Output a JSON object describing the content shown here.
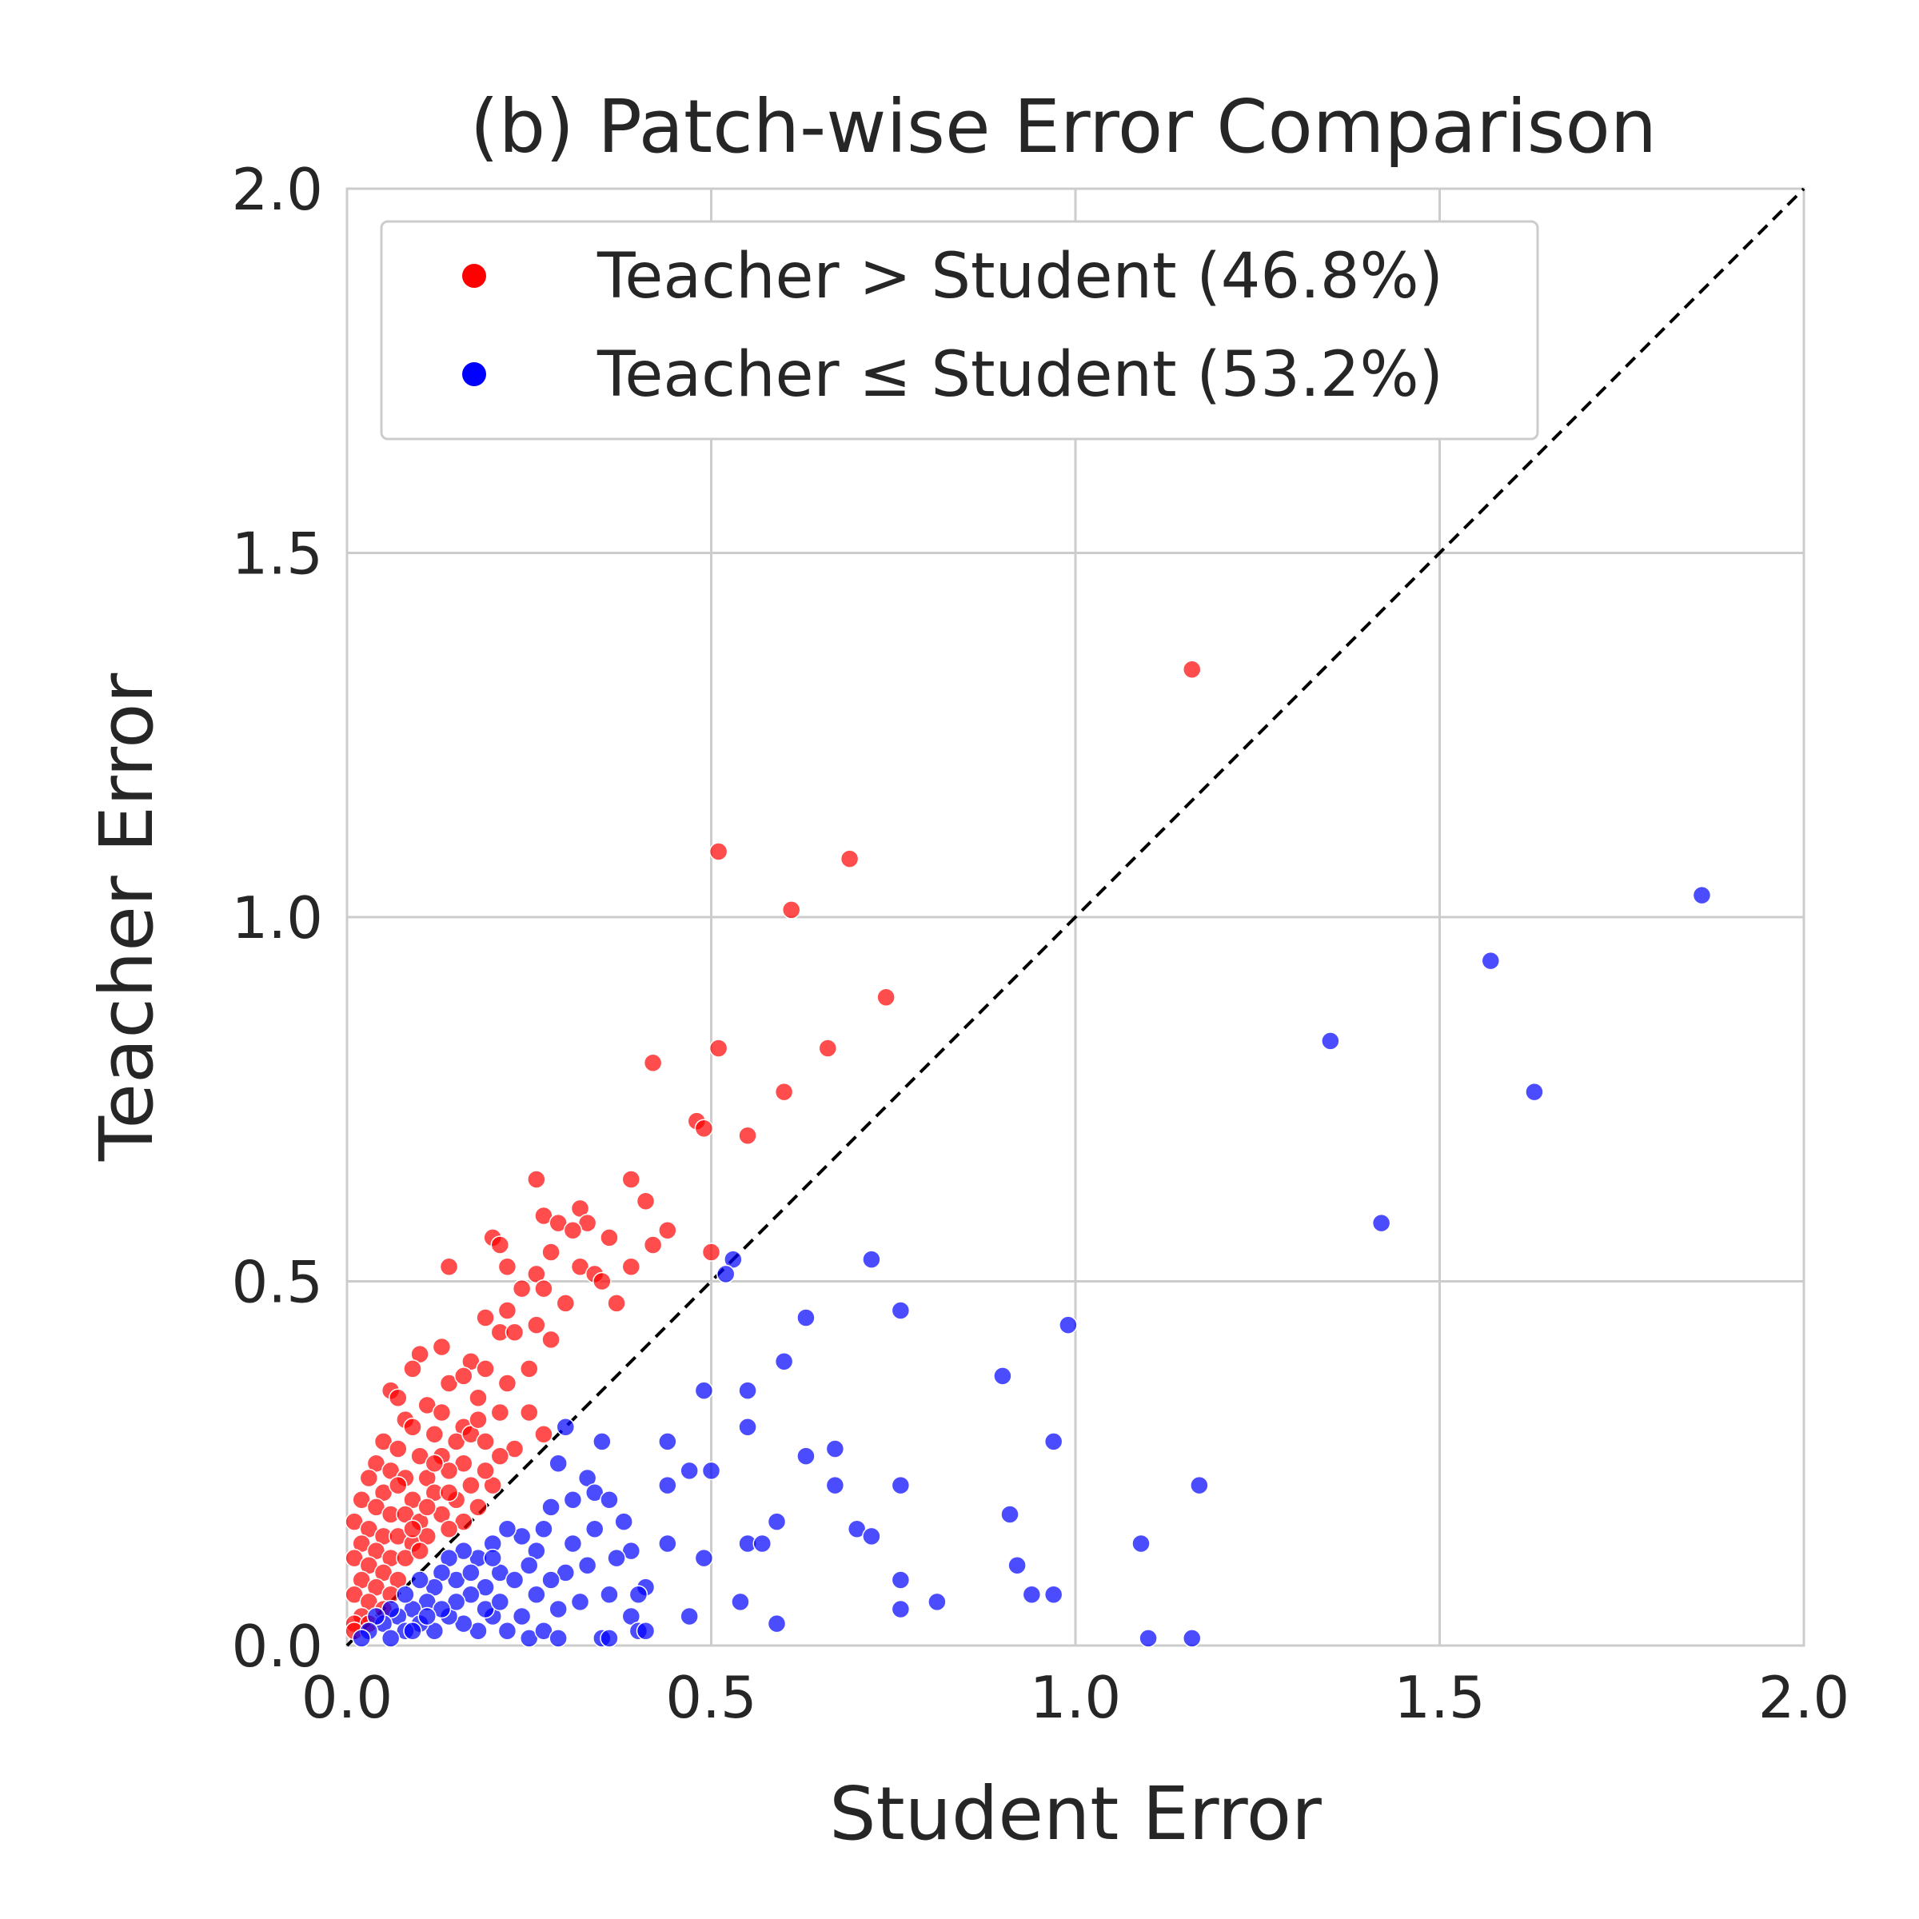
{
  "chart_data": {
    "type": "scatter",
    "title": "(b) Patch-wise Error Comparison",
    "xlabel": "Student Error",
    "ylabel": "Teacher Error",
    "xlim": [
      0.0,
      2.0
    ],
    "ylim": [
      0.0,
      2.0
    ],
    "xticks": [
      "0.0",
      "0.5",
      "1.0",
      "1.5",
      "2.0"
    ],
    "yticks": [
      "0.0",
      "0.5",
      "1.0",
      "1.5",
      "2.0"
    ],
    "grid": true,
    "legend_position": "top-left",
    "reference_line": "y = x (black dashed)",
    "series": [
      {
        "name": "Teacher > Student (46.8%)",
        "color": "#ff0000",
        "points": [
          [
            1.16,
            1.34
          ],
          [
            0.51,
            1.09
          ],
          [
            0.69,
            1.08
          ],
          [
            0.61,
            1.01
          ],
          [
            0.74,
            0.89
          ],
          [
            0.51,
            0.82
          ],
          [
            0.66,
            0.82
          ],
          [
            0.42,
            0.8
          ],
          [
            0.6,
            0.76
          ],
          [
            0.48,
            0.72
          ],
          [
            0.49,
            0.71
          ],
          [
            0.55,
            0.7
          ],
          [
            0.26,
            0.64
          ],
          [
            0.39,
            0.64
          ],
          [
            0.41,
            0.61
          ],
          [
            0.32,
            0.6
          ],
          [
            0.27,
            0.59
          ],
          [
            0.29,
            0.58
          ],
          [
            0.33,
            0.58
          ],
          [
            0.31,
            0.57
          ],
          [
            0.44,
            0.57
          ],
          [
            0.2,
            0.56
          ],
          [
            0.21,
            0.55
          ],
          [
            0.36,
            0.56
          ],
          [
            0.42,
            0.55
          ],
          [
            0.5,
            0.54
          ],
          [
            0.39,
            0.52
          ],
          [
            0.28,
            0.54
          ],
          [
            0.14,
            0.52
          ],
          [
            0.22,
            0.52
          ],
          [
            0.26,
            0.51
          ],
          [
            0.32,
            0.52
          ],
          [
            0.34,
            0.51
          ],
          [
            0.35,
            0.5
          ],
          [
            0.24,
            0.49
          ],
          [
            0.37,
            0.47
          ],
          [
            0.27,
            0.49
          ],
          [
            0.3,
            0.47
          ],
          [
            0.22,
            0.46
          ],
          [
            0.19,
            0.45
          ],
          [
            0.26,
            0.44
          ],
          [
            0.21,
            0.43
          ],
          [
            0.28,
            0.42
          ],
          [
            0.23,
            0.43
          ],
          [
            0.13,
            0.41
          ],
          [
            0.1,
            0.4
          ],
          [
            0.17,
            0.39
          ],
          [
            0.19,
            0.38
          ],
          [
            0.25,
            0.38
          ],
          [
            0.09,
            0.38
          ],
          [
            0.06,
            0.35
          ],
          [
            0.14,
            0.36
          ],
          [
            0.16,
            0.37
          ],
          [
            0.22,
            0.36
          ],
          [
            0.18,
            0.34
          ],
          [
            0.07,
            0.34
          ],
          [
            0.11,
            0.33
          ],
          [
            0.13,
            0.32
          ],
          [
            0.16,
            0.3
          ],
          [
            0.21,
            0.32
          ],
          [
            0.25,
            0.32
          ],
          [
            0.08,
            0.31
          ],
          [
            0.09,
            0.3
          ],
          [
            0.12,
            0.29
          ],
          [
            0.15,
            0.28
          ],
          [
            0.17,
            0.29
          ],
          [
            0.19,
            0.28
          ],
          [
            0.27,
            0.29
          ],
          [
            0.05,
            0.28
          ],
          [
            0.07,
            0.27
          ],
          [
            0.1,
            0.26
          ],
          [
            0.13,
            0.26
          ],
          [
            0.16,
            0.25
          ],
          [
            0.04,
            0.25
          ],
          [
            0.06,
            0.24
          ],
          [
            0.08,
            0.23
          ],
          [
            0.11,
            0.23
          ],
          [
            0.14,
            0.24
          ],
          [
            0.2,
            0.22
          ],
          [
            0.03,
            0.23
          ],
          [
            0.05,
            0.21
          ],
          [
            0.07,
            0.22
          ],
          [
            0.09,
            0.2
          ],
          [
            0.12,
            0.21
          ],
          [
            0.15,
            0.2
          ],
          [
            0.18,
            0.19
          ],
          [
            0.02,
            0.2
          ],
          [
            0.04,
            0.19
          ],
          [
            0.06,
            0.18
          ],
          [
            0.08,
            0.18
          ],
          [
            0.1,
            0.17
          ],
          [
            0.13,
            0.18
          ],
          [
            0.16,
            0.17
          ],
          [
            0.01,
            0.17
          ],
          [
            0.03,
            0.16
          ],
          [
            0.05,
            0.15
          ],
          [
            0.07,
            0.15
          ],
          [
            0.09,
            0.14
          ],
          [
            0.11,
            0.15
          ],
          [
            0.14,
            0.16
          ],
          [
            0.02,
            0.14
          ],
          [
            0.04,
            0.13
          ],
          [
            0.06,
            0.12
          ],
          [
            0.08,
            0.12
          ],
          [
            0.1,
            0.13
          ],
          [
            0.01,
            0.12
          ],
          [
            0.03,
            0.11
          ],
          [
            0.05,
            0.1
          ],
          [
            0.07,
            0.09
          ],
          [
            0.02,
            0.09
          ],
          [
            0.04,
            0.08
          ],
          [
            0.06,
            0.07
          ],
          [
            0.01,
            0.07
          ],
          [
            0.03,
            0.06
          ],
          [
            0.05,
            0.05
          ],
          [
            0.02,
            0.04
          ],
          [
            0.01,
            0.03
          ],
          [
            0.03,
            0.03
          ],
          [
            0.01,
            0.02
          ],
          [
            0.12,
            0.25
          ],
          [
            0.18,
            0.31
          ],
          [
            0.23,
            0.27
          ],
          [
            0.19,
            0.24
          ],
          [
            0.11,
            0.19
          ],
          [
            0.09,
            0.16
          ],
          [
            0.14,
            0.21
          ],
          [
            0.17,
            0.22
          ],
          [
            0.21,
            0.26
          ]
        ]
      },
      {
        "name": "Teacher ≤ Student (53.2%)",
        "color": "#0000ff",
        "points": [
          [
            1.86,
            1.03
          ],
          [
            1.57,
            0.94
          ],
          [
            1.35,
            0.83
          ],
          [
            1.63,
            0.76
          ],
          [
            1.42,
            0.58
          ],
          [
            0.53,
            0.53
          ],
          [
            0.72,
            0.53
          ],
          [
            0.52,
            0.51
          ],
          [
            0.76,
            0.46
          ],
          [
            0.63,
            0.45
          ],
          [
            0.99,
            0.44
          ],
          [
            0.6,
            0.39
          ],
          [
            0.9,
            0.37
          ],
          [
            0.49,
            0.35
          ],
          [
            0.55,
            0.35
          ],
          [
            0.3,
            0.3
          ],
          [
            0.55,
            0.3
          ],
          [
            0.44,
            0.28
          ],
          [
            0.35,
            0.28
          ],
          [
            0.97,
            0.28
          ],
          [
            0.67,
            0.27
          ],
          [
            0.63,
            0.26
          ],
          [
            0.47,
            0.24
          ],
          [
            0.5,
            0.24
          ],
          [
            0.29,
            0.25
          ],
          [
            0.33,
            0.23
          ],
          [
            0.44,
            0.22
          ],
          [
            0.67,
            0.22
          ],
          [
            0.76,
            0.22
          ],
          [
            1.17,
            0.22
          ],
          [
            0.34,
            0.21
          ],
          [
            0.36,
            0.2
          ],
          [
            0.31,
            0.2
          ],
          [
            0.28,
            0.19
          ],
          [
            0.38,
            0.17
          ],
          [
            0.59,
            0.17
          ],
          [
            0.91,
            0.18
          ],
          [
            0.7,
            0.16
          ],
          [
            0.72,
            0.15
          ],
          [
            0.55,
            0.14
          ],
          [
            0.57,
            0.14
          ],
          [
            0.44,
            0.14
          ],
          [
            1.09,
            0.14
          ],
          [
            0.49,
            0.12
          ],
          [
            0.39,
            0.13
          ],
          [
            0.26,
            0.13
          ],
          [
            0.27,
            0.16
          ],
          [
            0.24,
            0.15
          ],
          [
            0.22,
            0.16
          ],
          [
            0.2,
            0.14
          ],
          [
            0.18,
            0.12
          ],
          [
            0.16,
            0.13
          ],
          [
            0.14,
            0.12
          ],
          [
            0.21,
            0.1
          ],
          [
            0.23,
            0.09
          ],
          [
            0.19,
            0.08
          ],
          [
            0.17,
            0.07
          ],
          [
            0.15,
            0.09
          ],
          [
            0.13,
            0.1
          ],
          [
            0.12,
            0.08
          ],
          [
            0.11,
            0.06
          ],
          [
            0.1,
            0.09
          ],
          [
            0.09,
            0.05
          ],
          [
            0.08,
            0.07
          ],
          [
            0.07,
            0.04
          ],
          [
            0.06,
            0.05
          ],
          [
            0.05,
            0.03
          ],
          [
            0.04,
            0.04
          ],
          [
            0.03,
            0.02
          ],
          [
            0.02,
            0.01
          ],
          [
            0.3,
            0.1
          ],
          [
            0.33,
            0.11
          ],
          [
            0.36,
            0.07
          ],
          [
            0.41,
            0.08
          ],
          [
            0.4,
            0.07
          ],
          [
            0.26,
            0.07
          ],
          [
            0.29,
            0.05
          ],
          [
            0.32,
            0.06
          ],
          [
            0.76,
            0.09
          ],
          [
            0.92,
            0.11
          ],
          [
            0.94,
            0.07
          ],
          [
            0.97,
            0.07
          ],
          [
            0.81,
            0.06
          ],
          [
            0.76,
            0.05
          ],
          [
            0.54,
            0.06
          ],
          [
            0.47,
            0.04
          ],
          [
            0.59,
            0.03
          ],
          [
            0.39,
            0.04
          ],
          [
            0.35,
            0.01
          ],
          [
            0.4,
            0.02
          ],
          [
            0.41,
            0.02
          ],
          [
            1.1,
            0.01
          ],
          [
            1.16,
            0.01
          ],
          [
            0.22,
            0.02
          ],
          [
            0.25,
            0.01
          ],
          [
            0.27,
            0.02
          ],
          [
            0.2,
            0.04
          ],
          [
            0.18,
            0.02
          ],
          [
            0.16,
            0.03
          ],
          [
            0.14,
            0.04
          ],
          [
            0.12,
            0.02
          ],
          [
            0.1,
            0.03
          ],
          [
            0.08,
            0.02
          ],
          [
            0.06,
            0.01
          ],
          [
            0.15,
            0.06
          ],
          [
            0.13,
            0.05
          ],
          [
            0.19,
            0.05
          ],
          [
            0.21,
            0.06
          ],
          [
            0.24,
            0.04
          ],
          [
            0.11,
            0.04
          ],
          [
            0.09,
            0.02
          ],
          [
            0.17,
            0.1
          ],
          [
            0.2,
            0.12
          ],
          [
            0.25,
            0.11
          ],
          [
            0.28,
            0.09
          ],
          [
            0.31,
            0.14
          ],
          [
            0.34,
            0.16
          ],
          [
            0.37,
            0.12
          ],
          [
            0.29,
            0.01
          ],
          [
            0.36,
            0.01
          ]
        ]
      }
    ]
  }
}
